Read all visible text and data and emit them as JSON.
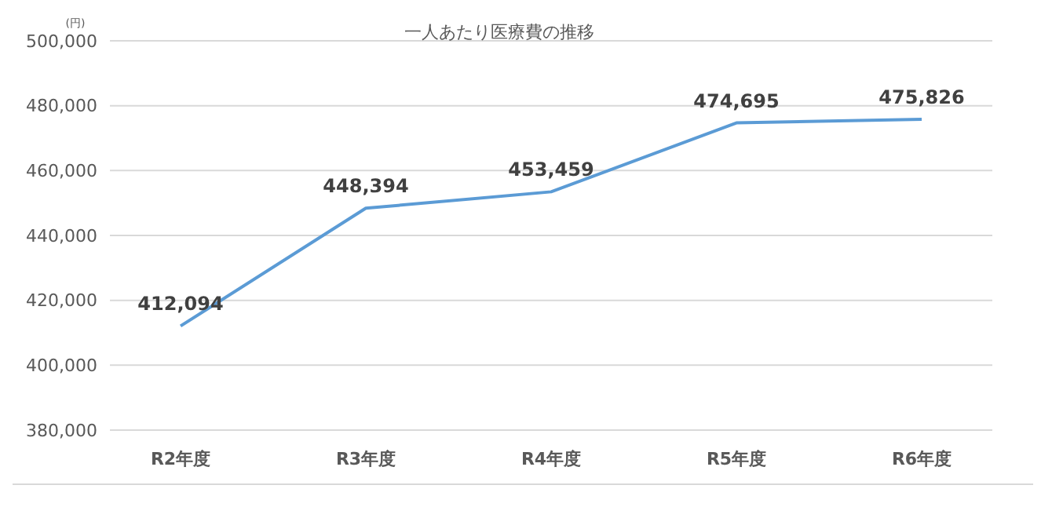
{
  "chart_data": {
    "type": "line",
    "title": "一人あたり医療費の推移",
    "ylabel": "(円)",
    "categories": [
      "R2年度",
      "R3年度",
      "R4年度",
      "R5年度",
      "R6年度"
    ],
    "series": [
      {
        "color": "#5b9bd5",
        "values": [
          412094,
          448394,
          453459,
          474695,
          475826
        ],
        "value_labels": [
          "412,094",
          "448,394",
          "453,459",
          "474,695",
          "475,826"
        ]
      }
    ],
    "ylim": [
      380000,
      500000
    ],
    "yticks": [
      {
        "value": 380000,
        "label": "380,000"
      },
      {
        "value": 400000,
        "label": "400,000"
      },
      {
        "value": 420000,
        "label": "420,000"
      },
      {
        "value": 440000,
        "label": "440,000"
      },
      {
        "value": 460000,
        "label": "460,000"
      },
      {
        "value": 480000,
        "label": "480,000"
      },
      {
        "value": 500000,
        "label": "500,000"
      }
    ],
    "grid": "y",
    "marker": "none",
    "line_style": "solid"
  }
}
